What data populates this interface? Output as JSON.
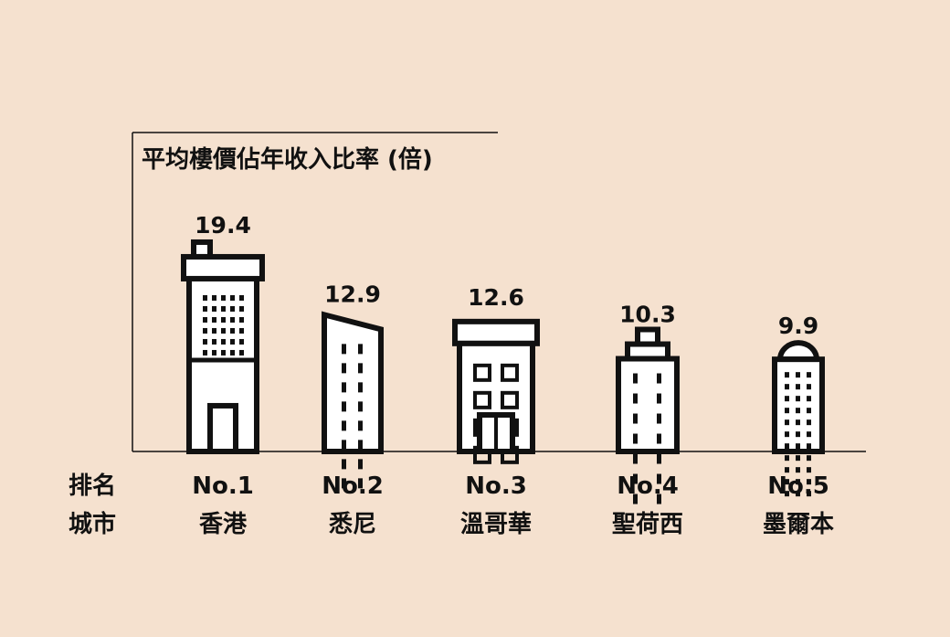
{
  "chart_data": {
    "type": "bar",
    "title": "平均樓價佔年收入比率 (倍)",
    "row_labels": {
      "rank": "排名",
      "city": "城市"
    },
    "ranks": [
      "No.1",
      "No.2",
      "No.3",
      "No.4",
      "No.5"
    ],
    "categories": [
      "香港",
      "悉尼",
      "溫哥華",
      "聖荷西",
      "墨爾本"
    ],
    "values": [
      19.4,
      12.9,
      12.6,
      10.3,
      9.9
    ],
    "value_labels": [
      "19.4",
      "12.9",
      "12.6",
      "10.3",
      "9.9"
    ],
    "bar_style": "building-icons",
    "colors": {
      "background": "#f5e1cf",
      "building_fill": "#ffffff",
      "ink": "#111111"
    }
  }
}
